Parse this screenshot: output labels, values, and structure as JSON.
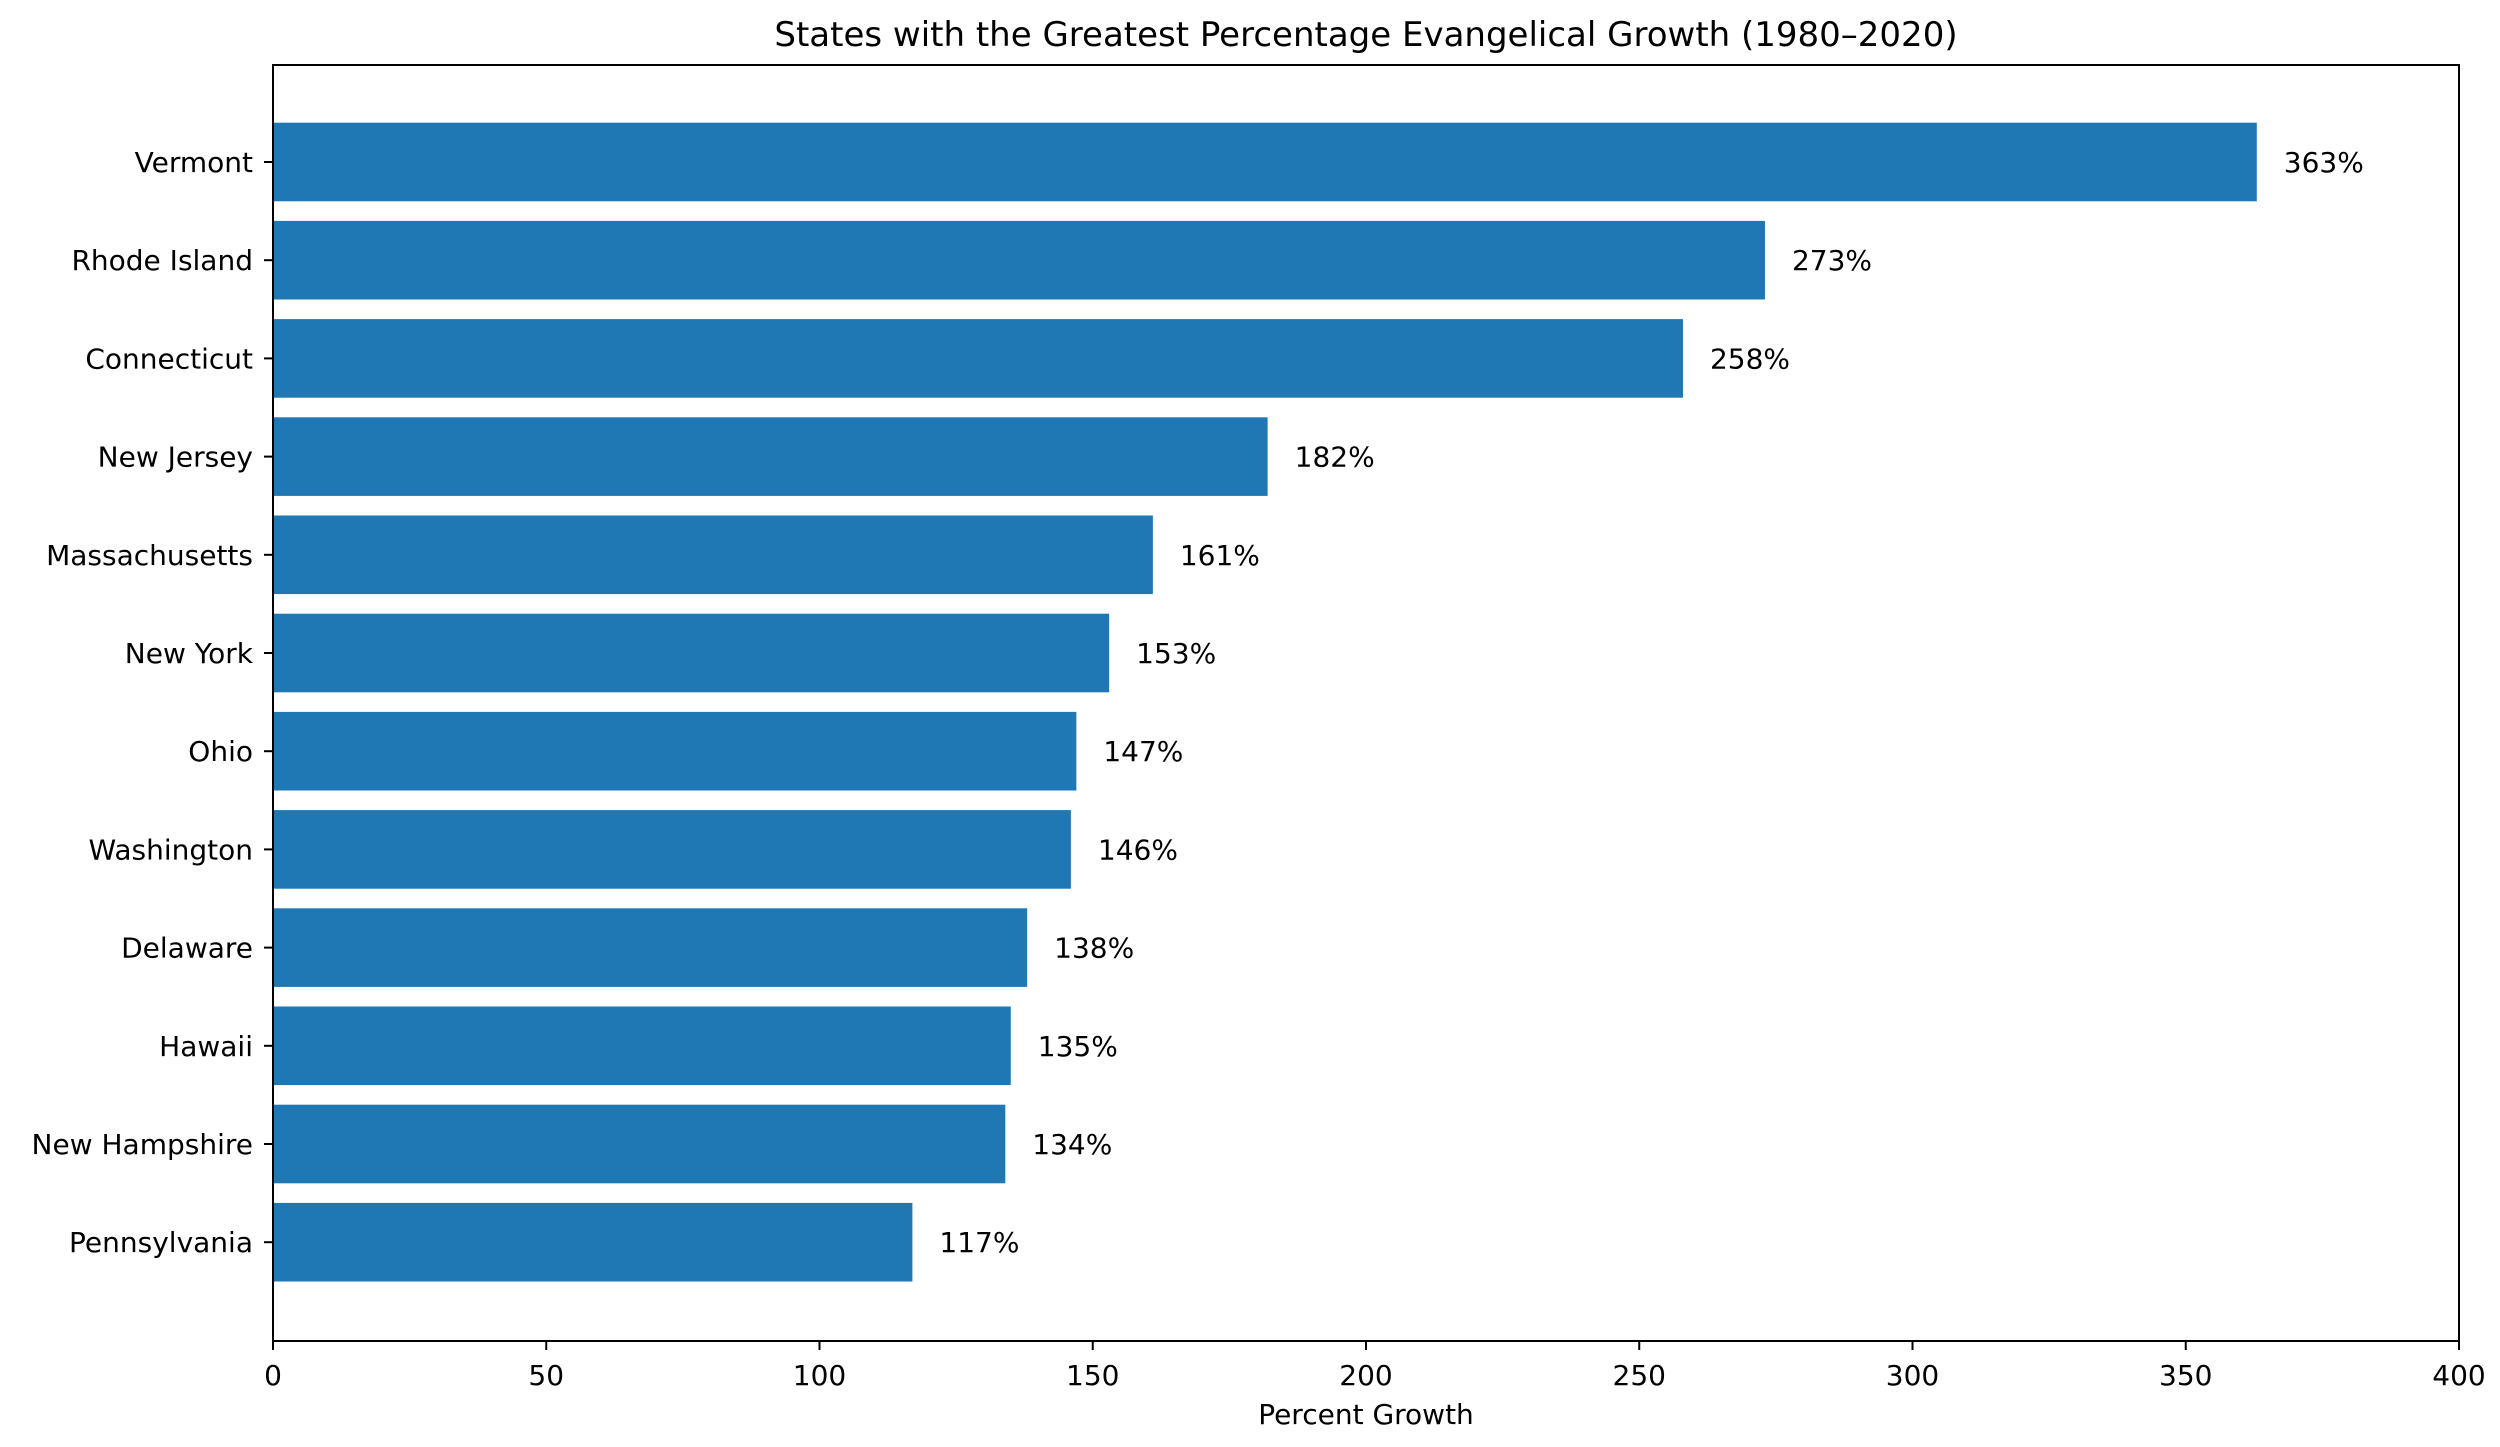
{
  "chart_data": {
    "type": "bar",
    "orientation": "horizontal",
    "title": "States with the Greatest Percentage Evangelical Growth (1980–2020)",
    "xlabel": "Percent Growth",
    "ylabel": "",
    "xlim": [
      0,
      400
    ],
    "xticks": [
      0,
      50,
      100,
      150,
      200,
      250,
      300,
      350,
      400
    ],
    "grid": false,
    "legend": "none",
    "bar_color": "#1f77b4",
    "categories": [
      "Vermont",
      "Rhode Island",
      "Connecticut",
      "New Jersey",
      "Massachusetts",
      "New York",
      "Ohio",
      "Washington",
      "Delaware",
      "Hawaii",
      "New Hampshire",
      "Pennsylvania"
    ],
    "values": [
      363,
      273,
      258,
      182,
      161,
      153,
      147,
      146,
      138,
      135,
      134,
      117
    ],
    "data_labels": [
      "363%",
      "273%",
      "258%",
      "182%",
      "161%",
      "153%",
      "147%",
      "146%",
      "138%",
      "135%",
      "134%",
      "117%"
    ]
  }
}
